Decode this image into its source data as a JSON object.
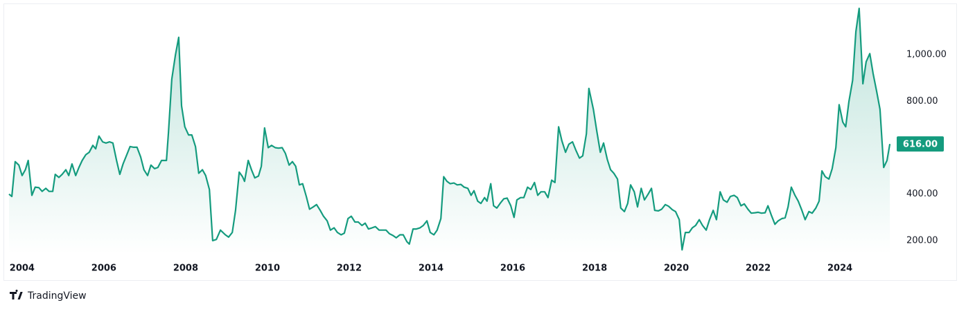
{
  "chart_data": {
    "type": "area",
    "brand": "TradingView",
    "color": "#149b7e",
    "price_label": "616.00",
    "xlim": [
      2003.68,
      2025.32
    ],
    "xticks": [
      2004,
      2006,
      2008,
      2010,
      2012,
      2014,
      2016,
      2018,
      2020,
      2022,
      2024
    ],
    "ylim": [
      140,
      1221
    ],
    "yticks": [
      {
        "value": 200,
        "label": "200.00"
      },
      {
        "value": 400,
        "label": "400.00"
      },
      {
        "value": 800,
        "label": "800.00"
      },
      {
        "value": 1000,
        "label": "1,000.00"
      }
    ],
    "grid": false,
    "x": [
      2003.68,
      2003.75,
      2003.83,
      2003.92,
      2004.0,
      2004.08,
      2004.15,
      2004.24,
      2004.32,
      2004.41,
      2004.49,
      2004.58,
      2004.66,
      2004.75,
      2004.81,
      2004.9,
      2004.98,
      2005.07,
      2005.14,
      2005.22,
      2005.31,
      2005.39,
      2005.47,
      2005.56,
      2005.64,
      2005.73,
      2005.8,
      2005.88,
      2005.97,
      2006.05,
      2006.14,
      2006.22,
      2006.31,
      2006.39,
      2006.47,
      2006.56,
      2006.64,
      2006.73,
      2006.81,
      2006.9,
      2006.98,
      2007.07,
      2007.15,
      2007.24,
      2007.32,
      2007.41,
      2007.53,
      2007.58,
      2007.66,
      2007.75,
      2007.83,
      2007.9,
      2007.98,
      2008.07,
      2008.15,
      2008.24,
      2008.32,
      2008.41,
      2008.49,
      2008.58,
      2008.66,
      2008.75,
      2008.85,
      2008.97,
      2009.05,
      2009.14,
      2009.22,
      2009.31,
      2009.39,
      2009.44,
      2009.53,
      2009.61,
      2009.69,
      2009.78,
      2009.85,
      2009.93,
      2010.02,
      2010.1,
      2010.19,
      2010.27,
      2010.36,
      2010.44,
      2010.53,
      2010.61,
      2010.69,
      2010.78,
      2010.86,
      2010.95,
      2011.03,
      2011.12,
      2011.2,
      2011.29,
      2011.37,
      2011.46,
      2011.54,
      2011.63,
      2011.71,
      2011.8,
      2011.88,
      2011.97,
      2012.05,
      2012.14,
      2012.22,
      2012.31,
      2012.39,
      2012.47,
      2012.56,
      2012.64,
      2012.73,
      2012.81,
      2012.9,
      2012.98,
      2013.07,
      2013.15,
      2013.24,
      2013.32,
      2013.41,
      2013.47,
      2013.56,
      2013.64,
      2013.73,
      2013.81,
      2013.9,
      2013.98,
      2014.07,
      2014.15,
      2014.24,
      2014.31,
      2014.39,
      2014.47,
      2014.56,
      2014.64,
      2014.73,
      2014.81,
      2014.9,
      2014.98,
      2015.05,
      2015.14,
      2015.22,
      2015.31,
      2015.37,
      2015.46,
      2015.53,
      2015.61,
      2015.69,
      2015.78,
      2015.86,
      2015.95,
      2016.03,
      2016.1,
      2016.19,
      2016.27,
      2016.36,
      2016.44,
      2016.53,
      2016.61,
      2016.69,
      2016.78,
      2016.86,
      2016.95,
      2017.03,
      2017.12,
      2017.2,
      2017.29,
      2017.37,
      2017.46,
      2017.54,
      2017.63,
      2017.71,
      2017.8,
      2017.86,
      2017.97,
      2018.05,
      2018.14,
      2018.22,
      2018.31,
      2018.39,
      2018.47,
      2018.56,
      2018.64,
      2018.73,
      2018.81,
      2018.88,
      2018.97,
      2019.05,
      2019.14,
      2019.22,
      2019.31,
      2019.39,
      2019.47,
      2019.56,
      2019.64,
      2019.73,
      2019.81,
      2019.9,
      2019.98,
      2020.07,
      2020.14,
      2020.22,
      2020.31,
      2020.39,
      2020.47,
      2020.56,
      2020.64,
      2020.73,
      2020.81,
      2020.9,
      2020.98,
      2021.07,
      2021.15,
      2021.24,
      2021.32,
      2021.41,
      2021.49,
      2021.58,
      2021.66,
      2021.75,
      2021.83,
      2021.92,
      2022.0,
      2022.08,
      2022.17,
      2022.24,
      2022.32,
      2022.41,
      2022.49,
      2022.58,
      2022.66,
      2022.73,
      2022.81,
      2022.9,
      2022.98,
      2023.07,
      2023.15,
      2023.24,
      2023.32,
      2023.41,
      2023.49,
      2023.56,
      2023.64,
      2023.73,
      2023.81,
      2023.9,
      2023.98,
      2024.07,
      2024.14,
      2024.22,
      2024.31,
      2024.39,
      2024.47,
      2024.56,
      2024.64,
      2024.73,
      2024.81,
      2024.9,
      2024.98,
      2025.07,
      2025.15,
      2025.22
    ],
    "values": [
      400,
      390,
      540,
      525,
      480,
      505,
      545,
      395,
      430,
      428,
      412,
      425,
      412,
      412,
      485,
      472,
      485,
      505,
      480,
      530,
      480,
      515,
      545,
      570,
      580,
      610,
      595,
      650,
      625,
      620,
      625,
      620,
      545,
      485,
      530,
      570,
      605,
      602,
      602,
      560,
      505,
      480,
      525,
      510,
      515,
      545,
      545,
      665,
      895,
      1000,
      1075,
      780,
      690,
      655,
      655,
      605,
      490,
      505,
      480,
      420,
      200,
      205,
      245,
      225,
      215,
      235,
      330,
      495,
      475,
      455,
      545,
      505,
      470,
      478,
      520,
      685,
      600,
      610,
      600,
      598,
      600,
      575,
      525,
      540,
      520,
      440,
      445,
      390,
      335,
      345,
      355,
      330,
      305,
      285,
      245,
      255,
      235,
      225,
      232,
      295,
      305,
      280,
      280,
      265,
      275,
      250,
      255,
      260,
      245,
      245,
      245,
      230,
      222,
      212,
      225,
      225,
      195,
      185,
      250,
      250,
      255,
      265,
      285,
      235,
      225,
      245,
      295,
      475,
      455,
      445,
      448,
      440,
      442,
      430,
      425,
      395,
      415,
      370,
      360,
      385,
      370,
      445,
      350,
      340,
      360,
      380,
      383,
      350,
      300,
      375,
      385,
      385,
      430,
      420,
      450,
      395,
      410,
      410,
      385,
      460,
      450,
      690,
      630,
      580,
      615,
      625,
      590,
      555,
      565,
      660,
      855,
      765,
      675,
      580,
      620,
      550,
      505,
      490,
      465,
      340,
      325,
      360,
      440,
      410,
      345,
      425,
      375,
      400,
      425,
      330,
      328,
      335,
      355,
      348,
      333,
      325,
      290,
      160,
      235,
      235,
      255,
      265,
      290,
      265,
      245,
      290,
      330,
      290,
      410,
      375,
      365,
      390,
      395,
      385,
      350,
      358,
      335,
      318,
      320,
      322,
      318,
      320,
      350,
      310,
      270,
      285,
      295,
      298,
      345,
      430,
      395,
      370,
      330,
      290,
      325,
      318,
      340,
      370,
      500,
      475,
      465,
      510,
      600,
      785,
      710,
      690,
      800,
      890,
      1100,
      1200,
      875,
      970,
      1005,
      920,
      840,
      765,
      515,
      545,
      616
    ]
  }
}
